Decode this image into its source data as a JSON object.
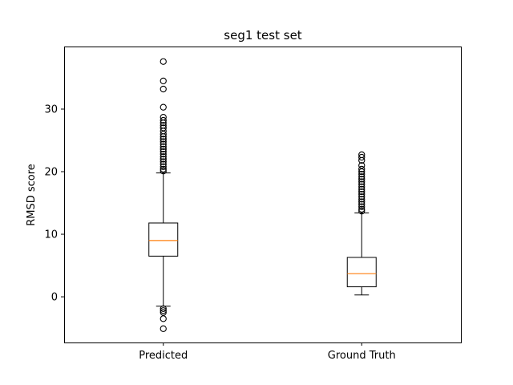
{
  "chart_data": {
    "type": "box",
    "title": "seg1 test set",
    "xlabel": "",
    "ylabel": "RMSD score",
    "ylim": [
      -7.3,
      40.0
    ],
    "yticks": [
      0,
      10,
      20,
      30
    ],
    "grid": false,
    "categories": [
      "Predicted",
      "Ground Truth"
    ],
    "boxes": [
      {
        "category": "Predicted",
        "whisker_low": -1.5,
        "q1": 6.5,
        "median": 9.0,
        "q3": 11.8,
        "whisker_high": 19.8,
        "outliers": [
          37.6,
          34.5,
          33.2,
          30.3,
          28.7,
          28.2,
          27.8,
          27.4,
          27.0,
          26.5,
          26.0,
          25.6,
          25.2,
          24.8,
          24.4,
          24.0,
          23.6,
          23.2,
          22.8,
          22.4,
          22.0,
          21.6,
          21.2,
          20.8,
          20.4,
          20.1,
          -1.9,
          -2.2,
          -2.5,
          -3.5,
          -5.1
        ]
      },
      {
        "category": "Ground Truth",
        "whisker_low": 0.3,
        "q1": 1.6,
        "median": 3.7,
        "q3": 6.3,
        "whisker_high": 13.4,
        "outliers": [
          22.7,
          22.3,
          21.8,
          21.0,
          20.4,
          20.0,
          19.6,
          19.2,
          18.8,
          18.4,
          18.0,
          17.6,
          17.2,
          16.8,
          16.4,
          16.0,
          15.6,
          15.2,
          14.8,
          14.4,
          14.0,
          13.7
        ]
      }
    ],
    "colors": {
      "box": "#000000",
      "median": "#ff7f0e",
      "outlier_face": "none"
    }
  }
}
